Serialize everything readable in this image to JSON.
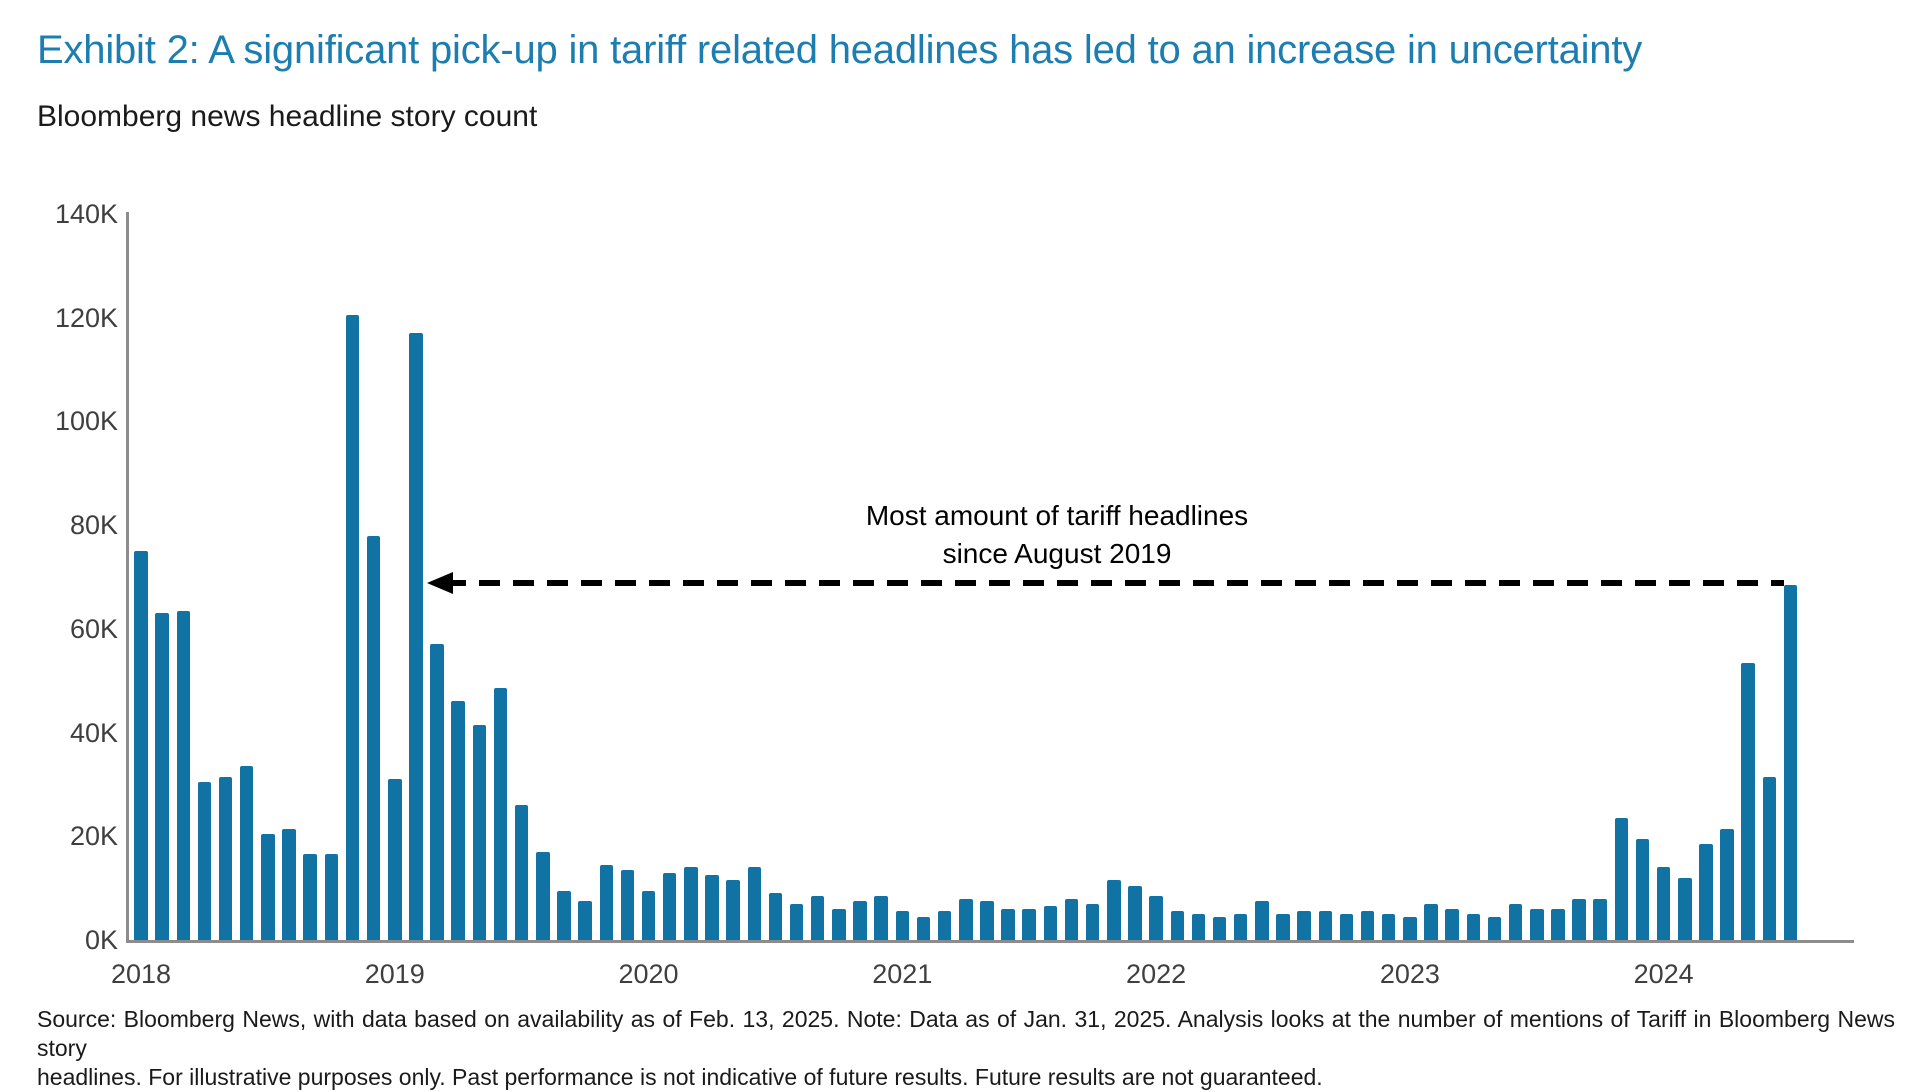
{
  "title": "Exhibit 2: A significant pick-up in tariff related headlines has led to an increase in uncertainty",
  "subtitle": "Bloomberg news headline story count",
  "annotation": {
    "line1": "Most amount of tariff headlines",
    "line2": "since August 2019"
  },
  "source": {
    "line1": "Source: Bloomberg News, with data based on availability as of Feb. 13, 2025. Note: Data as of Jan. 31, 2025. Analysis looks at the number of mentions of Tariff in Bloomberg News story",
    "line2": "headlines. For illustrative purposes only. Past performance is not indicative of future results. Future results are not guaranteed."
  },
  "colors": {
    "bar": "#1173a3",
    "title_text": "#1c7db0",
    "axis_line": "#8c8c8c",
    "tick_text": "#3f3f3f"
  },
  "chart_data": {
    "type": "bar",
    "title": "Bloomberg news headline story count",
    "unit": "thousands of headlines (K)",
    "ylim": [
      0,
      140
    ],
    "yticks": [
      "0K",
      "20K",
      "40K",
      "60K",
      "80K",
      "100K",
      "120K",
      "140K"
    ],
    "grid": false,
    "legend": false,
    "year_labels": [
      "2018",
      "2019",
      "2020",
      "2021",
      "2022",
      "2023",
      "2024"
    ],
    "x": [
      "Jul 2018",
      "Aug 2018",
      "Sep 2018",
      "Oct 2018",
      "Nov 2018",
      "Dec 2018",
      "Jan 2019",
      "Feb 2019",
      "Mar 2019",
      "Apr 2019",
      "May 2019",
      "Jun 2019",
      "Jul 2019",
      "Aug 2019",
      "Sep 2019",
      "Oct 2019",
      "Nov 2019",
      "Dec 2019",
      "Jan 2020",
      "Feb 2020",
      "Mar 2020",
      "Apr 2020",
      "May 2020",
      "Jun 2020",
      "Jul 2020",
      "Aug 2020",
      "Sep 2020",
      "Oct 2020",
      "Nov 2020",
      "Dec 2020",
      "Jan 2021",
      "Feb 2021",
      "Mar 2021",
      "Apr 2021",
      "May 2021",
      "Jun 2021",
      "Jul 2021",
      "Aug 2021",
      "Sep 2021",
      "Oct 2021",
      "Nov 2021",
      "Dec 2021",
      "Jan 2022",
      "Feb 2022",
      "Mar 2022",
      "Apr 2022",
      "May 2022",
      "Jun 2022",
      "Jul 2022",
      "Aug 2022",
      "Sep 2022",
      "Oct 2022",
      "Nov 2022",
      "Dec 2022",
      "Jan 2023",
      "Feb 2023",
      "Mar 2023",
      "Apr 2023",
      "May 2023",
      "Jun 2023",
      "Jul 2023",
      "Aug 2023",
      "Sep 2023",
      "Oct 2023",
      "Nov 2023",
      "Dec 2023",
      "Jan 2024",
      "Feb 2024",
      "Mar 2024",
      "Apr 2024",
      "May 2024",
      "Jun 2024",
      "Jul 2024",
      "Aug 2024",
      "Sep 2024",
      "Oct 2024",
      "Nov 2024",
      "Dec 2024",
      "Jan 2025"
    ],
    "values": [
      75,
      63,
      63.5,
      30.5,
      31.5,
      33.5,
      20.5,
      21.5,
      16.5,
      16.5,
      120.5,
      78,
      31,
      117,
      57,
      46,
      41.5,
      48.5,
      26,
      17,
      9.5,
      7.5,
      14.5,
      13.5,
      9.5,
      13,
      14,
      12.5,
      11.5,
      14,
      9,
      7,
      8.5,
      6,
      7.5,
      8.5,
      5.5,
      4.5,
      5.5,
      8,
      7.5,
      6,
      6,
      6.5,
      8,
      7,
      11.5,
      10.5,
      8.5,
      5.5,
      5,
      4.5,
      5,
      7.5,
      5,
      5.5,
      5.5,
      5,
      5.5,
      5,
      4.5,
      7,
      6,
      5,
      4.5,
      7,
      6,
      6,
      8,
      8,
      23.5,
      19.5,
      14,
      12,
      18.5,
      21.5,
      53.5,
      31.5,
      68.5
    ]
  }
}
